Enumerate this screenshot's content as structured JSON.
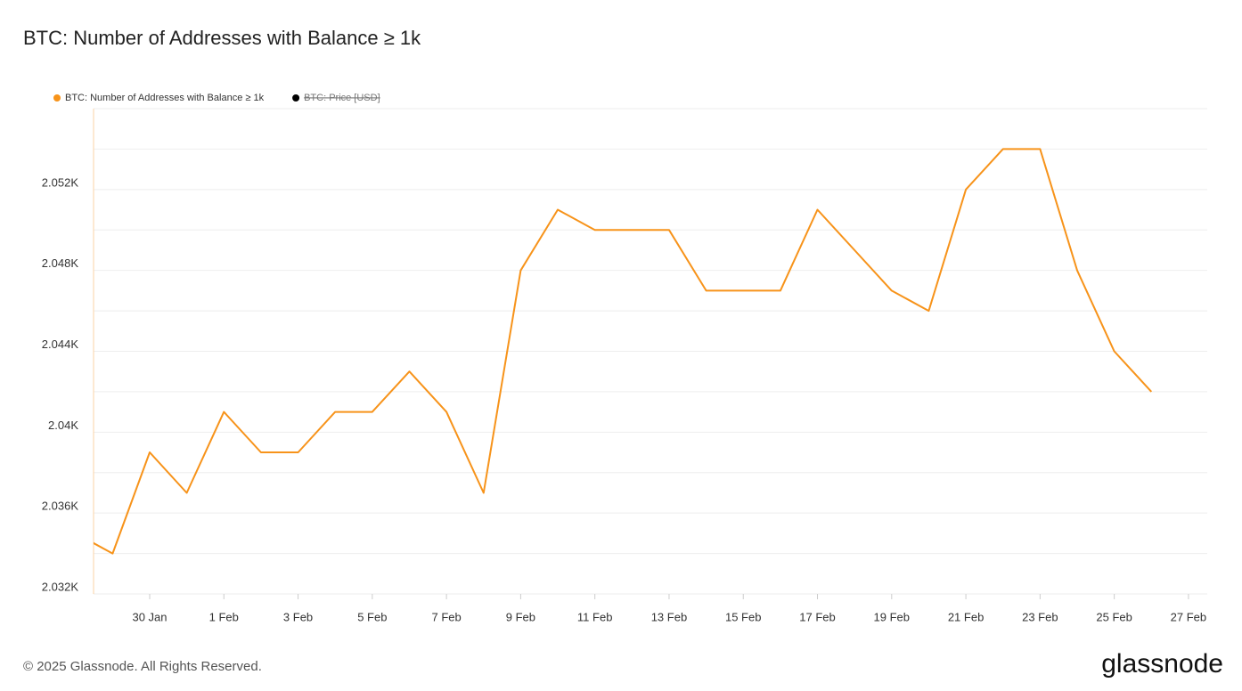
{
  "chart_data": {
    "type": "line",
    "title": "BTC: Number of Addresses with Balance ≥ 1k",
    "categories": [
      null,
      null,
      "30 Jan",
      null,
      "1 Feb",
      null,
      "3 Feb",
      null,
      "5 Feb",
      null,
      "7 Feb",
      null,
      "9 Feb",
      null,
      "11 Feb",
      null,
      "13 Feb",
      null,
      "15 Feb",
      null,
      "17 Feb",
      null,
      "19 Feb",
      null,
      "21 Feb",
      null,
      "23 Feb",
      null,
      "25 Feb",
      null,
      "27 Feb"
    ],
    "series": [
      {
        "name": "BTC: Number of Addresses with Balance ≥ 1k",
        "color": "#f7931a",
        "values": [
          2035,
          2034,
          2039,
          2037,
          2041,
          2039,
          2039,
          2041,
          2041,
          2043,
          2041,
          2037,
          2048,
          2051,
          2050,
          2050,
          2050,
          2047,
          2047,
          2047,
          2051,
          2049,
          2047,
          2046,
          2052,
          2054,
          2054,
          2048,
          2044,
          2042,
          null
        ]
      }
    ],
    "hidden_series": [
      {
        "name": "BTC: Price [USD]",
        "color": "#000000"
      }
    ],
    "ylim": [
      2032,
      2056
    ],
    "yticks": [
      {
        "value": 2032,
        "label": "2.032K"
      },
      {
        "value": 2036,
        "label": "2.036K"
      },
      {
        "value": 2040,
        "label": "2.04K"
      },
      {
        "value": 2044,
        "label": "2.044K"
      },
      {
        "value": 2048,
        "label": "2.048K"
      },
      {
        "value": 2052,
        "label": "2.052K"
      }
    ],
    "minor_yticks": [
      2034,
      2038,
      2042,
      2046,
      2050,
      2054,
      2056
    ],
    "grid": true,
    "footer": "© 2025 Glassnode. All Rights Reserved.",
    "brand": "glassnode"
  }
}
